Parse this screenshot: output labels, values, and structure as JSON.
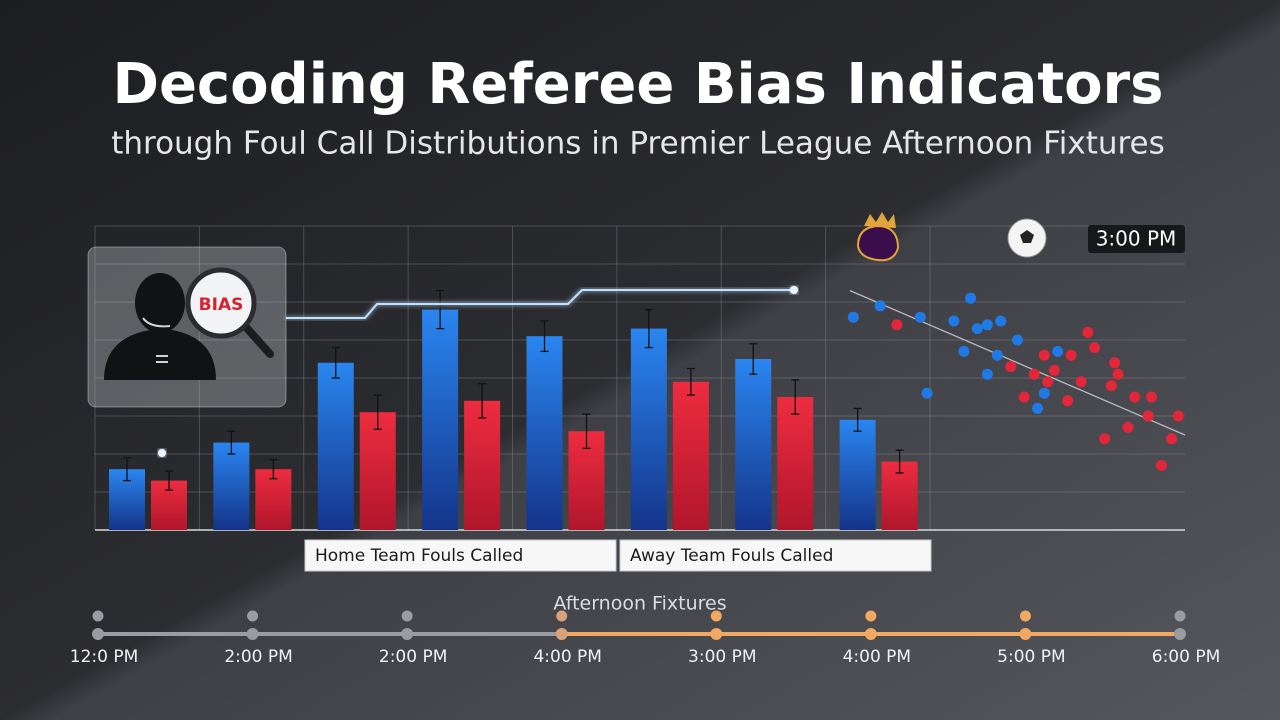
{
  "header": {
    "title": "Decoding Referee Bias Indicators",
    "subtitle": "through Foul Call Distributions in Premier League Afternoon Fixtures"
  },
  "panel": {
    "label": "BIAS"
  },
  "badge": "3:00 PM",
  "chart_data": [
    {
      "type": "bar",
      "ylim": [
        0,
        8
      ],
      "yticks": [
        0,
        1,
        2,
        3,
        4,
        5,
        6,
        7,
        8
      ],
      "grid": true,
      "legend": "bottom",
      "series": [
        {
          "name": "Home Team Fouls Called",
          "color": "#1f72dc",
          "values": [
            1.6,
            2.3,
            4.4,
            5.8,
            5.1,
            5.3,
            4.5,
            2.9
          ],
          "errors": [
            0.3,
            0.3,
            0.4,
            0.5,
            0.4,
            0.5,
            0.4,
            0.3
          ]
        },
        {
          "name": "Away Team Fouls Called",
          "color": "#e0263b",
          "values": [
            1.3,
            1.6,
            3.1,
            3.4,
            2.6,
            3.9,
            3.5,
            1.8
          ],
          "errors": [
            0.25,
            0.25,
            0.45,
            0.45,
            0.45,
            0.35,
            0.45,
            0.3
          ]
        }
      ]
    },
    {
      "type": "scatter",
      "xlim": [
        0,
        10
      ],
      "ylim": [
        0,
        8
      ],
      "series": [
        {
          "color": "#1f7ae6",
          "x": [
            0.1,
            0.9,
            2.1,
            2.3,
            3.1,
            3.6,
            3.8,
            4.1,
            4.5,
            3.4,
            4.4,
            4.1,
            5.0,
            5.6,
            6.2,
            5.8
          ],
          "y": [
            5.6,
            5.9,
            5.6,
            3.6,
            5.5,
            6.1,
            5.3,
            5.4,
            5.5,
            4.7,
            4.6,
            4.1,
            5.0,
            3.2,
            4.7,
            3.6
          ]
        },
        {
          "color": "#e3263a",
          "x": [
            1.4,
            4.8,
            5.5,
            5.8,
            5.9,
            5.2,
            6.1,
            6.6,
            6.5,
            6.9,
            7.1,
            7.3,
            7.9,
            7.8,
            8.0,
            8.5,
            9.0,
            8.9,
            9.8,
            9.6,
            8.3,
            7.6,
            9.3
          ],
          "y": [
            5.4,
            4.3,
            4.1,
            4.6,
            3.9,
            3.5,
            4.2,
            4.6,
            3.4,
            3.9,
            5.2,
            4.8,
            4.4,
            3.8,
            4.1,
            3.5,
            3.5,
            3.0,
            3.0,
            2.4,
            2.7,
            2.4,
            1.7
          ]
        }
      ],
      "trend": {
        "color": "#b9bcc2",
        "x": [
          0,
          10
        ],
        "y": [
          6.3,
          2.5
        ]
      }
    }
  ],
  "timeline": {
    "title": "Afternoon Fixtures",
    "labels": [
      "12:0 PM",
      "2:00 PM",
      "2:00 PM",
      "4:00 PM",
      "3:00 PM",
      "4:00 PM",
      "5:00 PM",
      "6:00 PM"
    ],
    "colors": [
      "#9a9ca1",
      "#9a9ca1",
      "#9a9ca1",
      "#d9a27a",
      "#f0a862",
      "#f0a862",
      "#f0a862",
      "#9a9ca1"
    ]
  }
}
